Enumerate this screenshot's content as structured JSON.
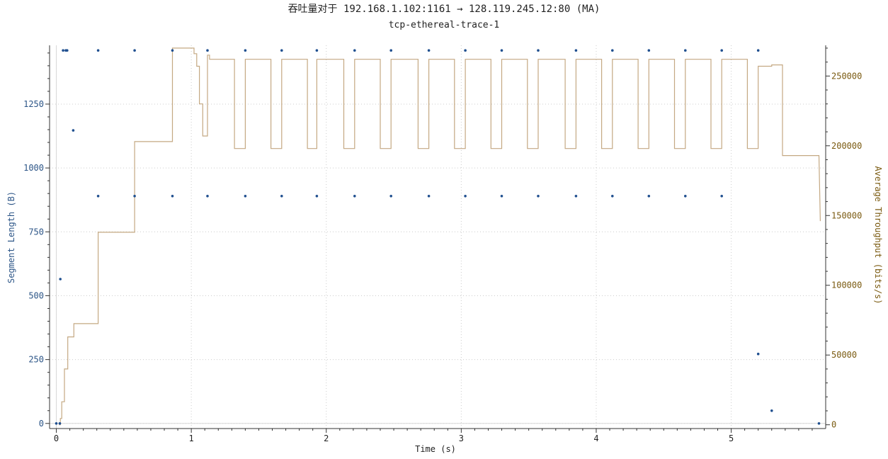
{
  "chart_data": {
    "type": "scatter",
    "title": "吞吐量对于 192.168.1.102:1161 → 128.119.245.12:80 (MA)",
    "subtitle": "tcp-ethereal-trace-1",
    "xlabel": "Time (s)",
    "ylabel": "Segment Length (B)",
    "y2label": "Average Throughput (bits/s)",
    "xlim": [
      -0.05,
      5.7
    ],
    "ylim": [
      -20,
      1480
    ],
    "y2lim": [
      -2700,
      272000
    ],
    "xticks": [
      "0",
      "1",
      "2",
      "3",
      "4",
      "5"
    ],
    "yticks": [
      "0",
      "250",
      "500",
      "750",
      "1000",
      "1250"
    ],
    "y2ticks": [
      "0",
      "50000",
      "100000",
      "150000",
      "200000",
      "250000"
    ],
    "grid": true,
    "colors": {
      "segments": "#1f4f8f",
      "throughput": "#c4a882",
      "left_axis_text": "#2c5587",
      "right_axis_text": "#7a5a10"
    },
    "series": [
      {
        "name": "Segment Length",
        "axis": "left",
        "type": "scatter",
        "points": [
          [
            0.0,
            0
          ],
          [
            0.026,
            0
          ],
          [
            0.03,
            565
          ],
          [
            0.05,
            1460
          ],
          [
            0.07,
            1460
          ],
          [
            0.08,
            1460
          ],
          [
            0.125,
            1147
          ],
          [
            0.31,
            1460
          ],
          [
            0.31,
            890
          ],
          [
            0.58,
            1460
          ],
          [
            0.58,
            890
          ],
          [
            0.86,
            1460
          ],
          [
            0.86,
            890
          ],
          [
            1.12,
            1460
          ],
          [
            1.12,
            890
          ],
          [
            1.4,
            1460
          ],
          [
            1.4,
            890
          ],
          [
            1.67,
            1460
          ],
          [
            1.67,
            890
          ],
          [
            1.93,
            1460
          ],
          [
            1.93,
            890
          ],
          [
            2.21,
            1460
          ],
          [
            2.21,
            890
          ],
          [
            2.48,
            1460
          ],
          [
            2.48,
            890
          ],
          [
            2.76,
            1460
          ],
          [
            2.76,
            890
          ],
          [
            3.03,
            1460
          ],
          [
            3.03,
            890
          ],
          [
            3.3,
            1460
          ],
          [
            3.3,
            890
          ],
          [
            3.57,
            1460
          ],
          [
            3.57,
            890
          ],
          [
            3.85,
            1460
          ],
          [
            3.85,
            890
          ],
          [
            4.12,
            1460
          ],
          [
            4.12,
            890
          ],
          [
            4.39,
            1460
          ],
          [
            4.39,
            890
          ],
          [
            4.66,
            1460
          ],
          [
            4.66,
            890
          ],
          [
            4.93,
            1460
          ],
          [
            4.93,
            890
          ],
          [
            5.2,
            1460
          ],
          [
            5.2,
            272
          ],
          [
            5.3,
            50
          ],
          [
            5.65,
            0
          ]
        ]
      },
      {
        "name": "Average Throughput",
        "axis": "right",
        "type": "line",
        "points": [
          [
            0.02,
            0
          ],
          [
            0.03,
            0
          ],
          [
            0.03,
            4500
          ],
          [
            0.04,
            4500
          ],
          [
            0.04,
            16500
          ],
          [
            0.06,
            16500
          ],
          [
            0.06,
            40000
          ],
          [
            0.085,
            40000
          ],
          [
            0.085,
            63000
          ],
          [
            0.13,
            63000
          ],
          [
            0.13,
            72500
          ],
          [
            0.31,
            72500
          ],
          [
            0.31,
            138000
          ],
          [
            0.58,
            138000
          ],
          [
            0.58,
            203000
          ],
          [
            0.86,
            203000
          ],
          [
            0.86,
            270000
          ],
          [
            1.02,
            270000
          ],
          [
            1.02,
            266000
          ],
          [
            1.04,
            266000
          ],
          [
            1.04,
            257000
          ],
          [
            1.06,
            257000
          ],
          [
            1.06,
            230000
          ],
          [
            1.085,
            230000
          ],
          [
            1.085,
            207000
          ],
          [
            1.12,
            207000
          ],
          [
            1.12,
            265000
          ],
          [
            1.135,
            265000
          ],
          [
            1.135,
            262000
          ],
          [
            1.32,
            262000
          ],
          [
            1.32,
            198000
          ],
          [
            1.4,
            198000
          ],
          [
            1.4,
            262000
          ],
          [
            1.59,
            262000
          ],
          [
            1.59,
            198000
          ],
          [
            1.67,
            198000
          ],
          [
            1.67,
            262000
          ],
          [
            1.86,
            262000
          ],
          [
            1.86,
            198000
          ],
          [
            1.93,
            198000
          ],
          [
            1.93,
            262000
          ],
          [
            2.13,
            262000
          ],
          [
            2.13,
            198000
          ],
          [
            2.21,
            198000
          ],
          [
            2.21,
            262000
          ],
          [
            2.4,
            262000
          ],
          [
            2.4,
            198000
          ],
          [
            2.48,
            198000
          ],
          [
            2.48,
            262000
          ],
          [
            2.68,
            262000
          ],
          [
            2.68,
            198000
          ],
          [
            2.76,
            198000
          ],
          [
            2.76,
            262000
          ],
          [
            2.95,
            262000
          ],
          [
            2.95,
            198000
          ],
          [
            3.03,
            198000
          ],
          [
            3.03,
            262000
          ],
          [
            3.22,
            262000
          ],
          [
            3.22,
            198000
          ],
          [
            3.3,
            198000
          ],
          [
            3.3,
            262000
          ],
          [
            3.49,
            262000
          ],
          [
            3.49,
            198000
          ],
          [
            3.57,
            198000
          ],
          [
            3.57,
            262000
          ],
          [
            3.77,
            262000
          ],
          [
            3.77,
            198000
          ],
          [
            3.85,
            198000
          ],
          [
            3.85,
            262000
          ],
          [
            4.04,
            262000
          ],
          [
            4.04,
            198000
          ],
          [
            4.12,
            198000
          ],
          [
            4.12,
            262000
          ],
          [
            4.31,
            262000
          ],
          [
            4.31,
            198000
          ],
          [
            4.39,
            198000
          ],
          [
            4.39,
            262000
          ],
          [
            4.58,
            262000
          ],
          [
            4.58,
            198000
          ],
          [
            4.66,
            198000
          ],
          [
            4.66,
            262000
          ],
          [
            4.85,
            262000
          ],
          [
            4.85,
            198000
          ],
          [
            4.93,
            198000
          ],
          [
            4.93,
            262000
          ],
          [
            5.12,
            262000
          ],
          [
            5.12,
            198000
          ],
          [
            5.2,
            198000
          ],
          [
            5.2,
            257000
          ],
          [
            5.3,
            257000
          ],
          [
            5.3,
            258000
          ],
          [
            5.38,
            258000
          ],
          [
            5.38,
            193000
          ],
          [
            5.65,
            193000
          ],
          [
            5.66,
            146000
          ]
        ]
      }
    ]
  }
}
